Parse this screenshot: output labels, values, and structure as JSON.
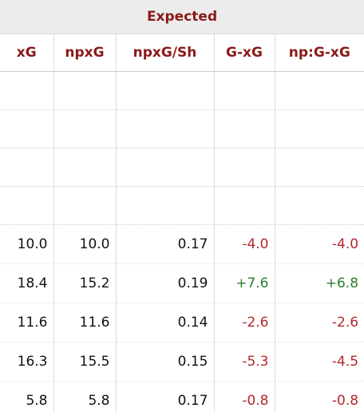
{
  "table": {
    "group": "Expected",
    "columns": [
      "xG",
      "npxG",
      "npxG/Sh",
      "G-xG",
      "np:G-xG"
    ],
    "rows": [
      [
        "10.0",
        "10.0",
        "0.17",
        "-4.0",
        "-4.0"
      ],
      [
        "18.4",
        "15.2",
        "0.19",
        "+7.6",
        "+6.8"
      ],
      [
        "11.6",
        "11.6",
        "0.14",
        "-2.6",
        "-2.6"
      ],
      [
        "16.3",
        "15.5",
        "0.15",
        "-5.3",
        "-4.5"
      ],
      [
        "5.8",
        "5.8",
        "0.17",
        "-0.8",
        "-0.8"
      ]
    ]
  }
}
